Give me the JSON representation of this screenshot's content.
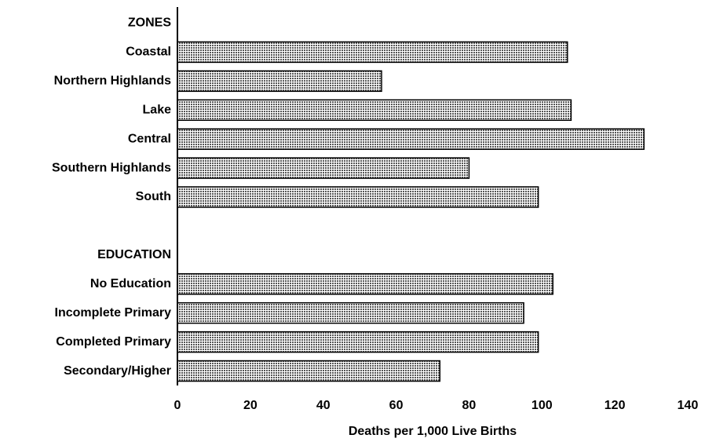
{
  "chart_data": {
    "type": "barh",
    "xlabel": "Deaths per 1,000 Live Births",
    "categories": [
      "ZONES",
      "Coastal",
      "Northern Highlands",
      "Lake",
      "Central",
      "Southern Highlands",
      "South",
      null,
      "EDUCATION",
      "No Education",
      "Incomplete Primary",
      "Completed Primary",
      "Secondary/Higher"
    ],
    "values": [
      null,
      107,
      56,
      108,
      128,
      80,
      99,
      null,
      null,
      103,
      95,
      99,
      72
    ],
    "color": "#9c9c9c",
    "xlim": [
      0,
      140
    ],
    "xticks": [
      0,
      20,
      40,
      60,
      80,
      100,
      120,
      140
    ],
    "grid": false
  }
}
